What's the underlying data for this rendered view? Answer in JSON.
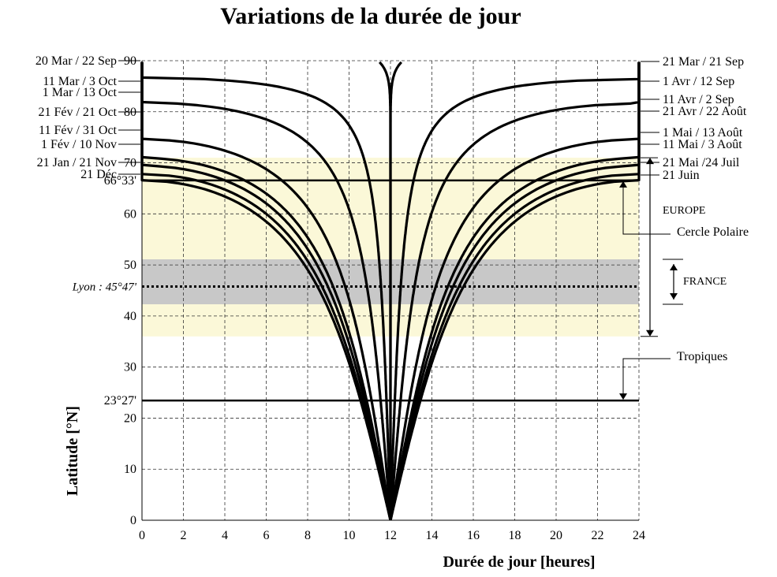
{
  "chart_data": {
    "type": "line",
    "title": "Variations de la durée de jour",
    "xlabel": "Durée de jour [heures]",
    "ylabel": "Latitude [°N]",
    "xlim": [
      0,
      24
    ],
    "ylim": [
      0,
      90
    ],
    "x_ticks": [
      "0",
      "2",
      "4",
      "6",
      "8",
      "10",
      "12",
      "14",
      "16",
      "18",
      "20",
      "22",
      "24"
    ],
    "y_ticks": [
      "0",
      "10",
      "20",
      "30",
      "40",
      "50",
      "60",
      "70",
      "80",
      "90"
    ],
    "grid": true,
    "bands": [
      {
        "name": "EUROPE",
        "lat_range": [
          36,
          71
        ],
        "color": "#fbf8d8"
      },
      {
        "name": "FRANCE",
        "lat_range": [
          42.3,
          51.1
        ],
        "color": "#c8c8c8"
      }
    ],
    "reference_lines": [
      {
        "label": "66°33'",
        "latitude": 66.55,
        "style": "solid"
      },
      {
        "label": "23°27'",
        "latitude": 23.45,
        "style": "solid"
      },
      {
        "label": "Lyon : 45°47'",
        "latitude": 45.78,
        "style": "dotted"
      }
    ],
    "annotations": [
      "EUROPE",
      "FRANCE",
      "Cercle Polaire",
      "Tropiques"
    ],
    "left_labels": [
      {
        "text": "20 Mar / 22 Sep",
        "delta_hours": 0.0
      },
      {
        "text": "11 Mar / 3 Oct",
        "delta_hours": -1.75
      },
      {
        "text": "1 Mar / 13 Oct",
        "delta_hours": -4.3
      },
      {
        "text": "21 Fév / 21 Oct",
        "delta_hours": -8.0
      },
      {
        "text": "11 Fév / 31 Oct",
        "delta_hours": -9.85
      },
      {
        "text": "1 Fév / 10 Nov",
        "delta_hours": -10.6
      },
      {
        "text": "21 Jan / 21 Nov",
        "delta_hours": -11.4
      },
      {
        "text": "21 Déc",
        "delta_hours": -12.0
      }
    ],
    "right_labels": [
      {
        "text": "21 Mar / 21 Sep",
        "delta_hours": 0.0
      },
      {
        "text": "1 Avr / 12 Sep",
        "delta_hours": 1.9
      },
      {
        "text": "11 Avr / 2 Sep",
        "delta_hours": 4.4
      },
      {
        "text": "21 Avr / 22 Août",
        "delta_hours": 8.0
      },
      {
        "text": "1 Mai / 13 Août",
        "delta_hours": 9.85
      },
      {
        "text": "11 Mai / 3 Août",
        "delta_hours": 10.6
      },
      {
        "text": "21 Mai /24 Juil",
        "delta_hours": 11.4
      },
      {
        "text": "21 Juin",
        "delta_hours": 12.0
      }
    ]
  }
}
